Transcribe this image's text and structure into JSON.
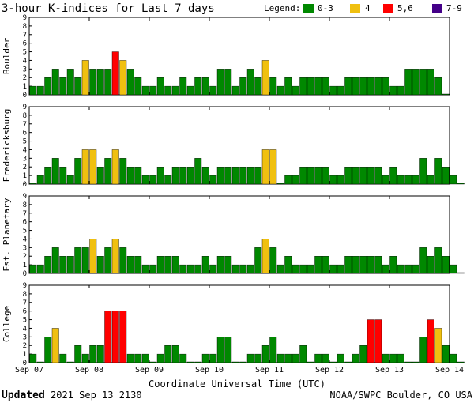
{
  "chart_data": {
    "type": "bar",
    "title": "3-hour K-indices for Last 7 days",
    "legend": {
      "label": "Legend:",
      "placement": "top-right",
      "entries": [
        {
          "label": "0-3",
          "color": "#008800"
        },
        {
          "label": "4",
          "color": "#f0c010"
        },
        {
          "label": "5,6",
          "color": "#ff0000"
        },
        {
          "label": "7-9",
          "color": "#440088"
        }
      ]
    },
    "ylim": [
      0,
      9
    ],
    "yticks": [
      "0",
      "1",
      "2",
      "3",
      "4",
      "5",
      "6",
      "7",
      "8",
      "9"
    ],
    "x_tick_labels": [
      "Sep 07",
      "Sep 08",
      "Sep 09",
      "Sep 10",
      "Sep 11",
      "Sep 12",
      "Sep 13",
      "Sep 14"
    ],
    "xlabel": "Coordinate Universal Time (UTC)",
    "panels": [
      {
        "name": "Boulder",
        "values": [
          1,
          1,
          2,
          3,
          2,
          3,
          2,
          4,
          3,
          3,
          3,
          5,
          4,
          3,
          2,
          1,
          1,
          2,
          1,
          1,
          2,
          1,
          2,
          2,
          1,
          3,
          3,
          1,
          2,
          3,
          2,
          4,
          2,
          1,
          2,
          1,
          2,
          2,
          2,
          2,
          1,
          1,
          2,
          2,
          2,
          2,
          2,
          2,
          1,
          1,
          3,
          3,
          3,
          3,
          2,
          0
        ]
      },
      {
        "name": "Fredericksburg",
        "values": [
          0,
          1,
          2,
          3,
          2,
          1,
          3,
          4,
          4,
          2,
          3,
          4,
          3,
          2,
          2,
          1,
          1,
          2,
          1,
          2,
          2,
          2,
          3,
          2,
          1,
          2,
          2,
          2,
          2,
          2,
          2,
          4,
          4,
          0,
          1,
          1,
          2,
          2,
          2,
          2,
          1,
          1,
          2,
          2,
          2,
          2,
          2,
          1,
          2,
          1,
          1,
          1,
          3,
          1,
          3,
          2,
          1,
          0
        ]
      },
      {
        "name": "Est. Planetary",
        "values": [
          1,
          1,
          2,
          3,
          2,
          2,
          3,
          3,
          4,
          2,
          3,
          4,
          3,
          2,
          2,
          1,
          1,
          2,
          2,
          2,
          1,
          1,
          1,
          2,
          1,
          2,
          2,
          1,
          1,
          1,
          3,
          4,
          3,
          1,
          2,
          1,
          1,
          1,
          2,
          2,
          1,
          1,
          2,
          2,
          2,
          2,
          2,
          1,
          2,
          1,
          1,
          1,
          3,
          2,
          3,
          2,
          1,
          0
        ]
      },
      {
        "name": "College",
        "values": [
          1,
          0,
          3,
          4,
          1,
          0,
          2,
          1,
          2,
          2,
          6,
          6,
          6,
          1,
          1,
          1,
          0,
          1,
          2,
          2,
          1,
          0,
          0,
          1,
          1,
          3,
          3,
          0,
          0,
          1,
          1,
          2,
          3,
          1,
          1,
          1,
          2,
          0,
          1,
          1,
          0,
          1,
          0,
          1,
          2,
          5,
          5,
          1,
          1,
          1,
          0,
          0,
          3,
          5,
          4,
          2,
          1,
          0
        ]
      }
    ]
  },
  "footer": {
    "updated_label": "Updated",
    "updated_time": "2021 Sep 13 2130",
    "credit": "NOAA/SWPC Boulder, CO USA"
  }
}
